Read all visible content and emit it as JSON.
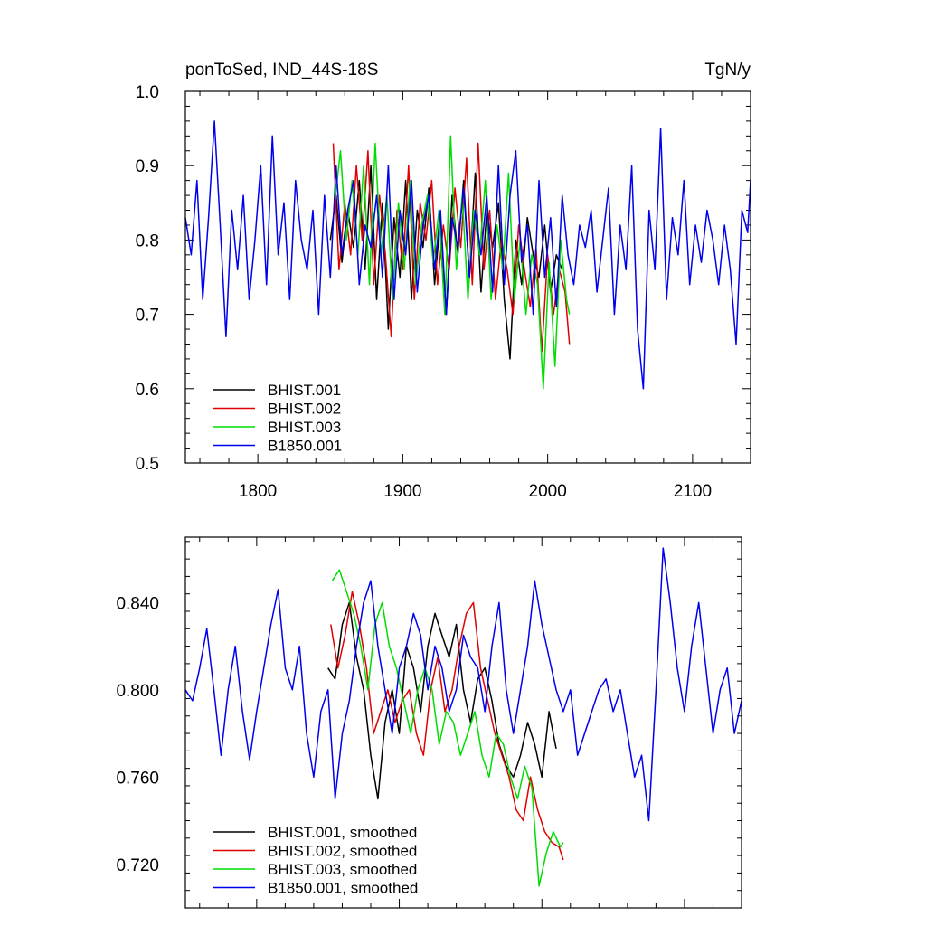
{
  "colors": {
    "black": "#000000",
    "red": "#e00000",
    "green": "#00dd00",
    "blue": "#0000ee"
  },
  "chart_data": [
    {
      "type": "line",
      "title": "ponToSed, IND_44S-18S",
      "units": "TgN/y",
      "xlim": [
        1750,
        2140
      ],
      "ylim": [
        0.5,
        1.0
      ],
      "xticks": [
        1800,
        1900,
        2000,
        2100
      ],
      "yticks": [
        0.5,
        0.6,
        0.7,
        0.8,
        0.9,
        1.0
      ],
      "ytick_labels": [
        "0.5",
        "0.6",
        "0.7",
        "0.8",
        "0.9",
        "1.0"
      ],
      "legend_position": "bottom-left",
      "series": [
        {
          "name": "BHIST.001",
          "color": "#000000",
          "x": [
            1850,
            1854,
            1858,
            1862,
            1866,
            1870,
            1874,
            1878,
            1882,
            1886,
            1890,
            1894,
            1898,
            1902,
            1906,
            1910,
            1914,
            1918,
            1922,
            1926,
            1930,
            1934,
            1938,
            1942,
            1946,
            1950,
            1954,
            1958,
            1962,
            1966,
            1970,
            1974,
            1978,
            1982,
            1986,
            1990,
            1994,
            1998,
            2002,
            2006,
            2010
          ],
          "values": [
            0.8,
            0.86,
            0.77,
            0.84,
            0.79,
            0.88,
            0.76,
            0.9,
            0.72,
            0.85,
            0.68,
            0.83,
            0.75,
            0.88,
            0.72,
            0.84,
            0.79,
            0.87,
            0.74,
            0.83,
            0.7,
            0.86,
            0.78,
            0.88,
            0.75,
            0.89,
            0.73,
            0.84,
            0.79,
            0.85,
            0.72,
            0.64,
            0.8,
            0.74,
            0.83,
            0.78,
            0.75,
            0.82,
            0.73,
            0.78,
            0.76
          ]
        },
        {
          "name": "BHIST.002",
          "color": "#e00000",
          "x": [
            1852,
            1856,
            1860,
            1864,
            1868,
            1872,
            1876,
            1880,
            1884,
            1888,
            1892,
            1896,
            1900,
            1904,
            1908,
            1912,
            1916,
            1920,
            1924,
            1928,
            1932,
            1936,
            1940,
            1944,
            1948,
            1952,
            1956,
            1960,
            1964,
            1968,
            1972,
            1976,
            1980,
            1984,
            1988,
            1992,
            1996,
            2000,
            2004,
            2008,
            2012,
            2015
          ],
          "values": [
            0.93,
            0.76,
            0.85,
            0.78,
            0.9,
            0.8,
            0.92,
            0.74,
            0.86,
            0.78,
            0.67,
            0.84,
            0.76,
            0.9,
            0.72,
            0.85,
            0.8,
            0.88,
            0.74,
            0.82,
            0.76,
            0.87,
            0.79,
            0.91,
            0.74,
            0.93,
            0.76,
            0.84,
            0.72,
            0.8,
            0.76,
            0.7,
            0.82,
            0.76,
            0.71,
            0.79,
            0.65,
            0.78,
            0.7,
            0.76,
            0.73,
            0.66
          ]
        },
        {
          "name": "BHIST.003",
          "color": "#00dd00",
          "x": [
            1853,
            1857,
            1861,
            1865,
            1869,
            1873,
            1877,
            1881,
            1885,
            1889,
            1893,
            1897,
            1901,
            1905,
            1909,
            1913,
            1917,
            1921,
            1925,
            1929,
            1933,
            1937,
            1941,
            1945,
            1949,
            1953,
            1957,
            1961,
            1965,
            1969,
            1973,
            1977,
            1981,
            1985,
            1989,
            1993,
            1997,
            2001,
            2005,
            2009,
            2013,
            2015
          ],
          "values": [
            0.85,
            0.92,
            0.8,
            0.88,
            0.78,
            0.9,
            0.74,
            0.93,
            0.78,
            0.86,
            0.72,
            0.85,
            0.76,
            0.88,
            0.74,
            0.82,
            0.86,
            0.77,
            0.84,
            0.7,
            0.94,
            0.76,
            0.86,
            0.72,
            0.84,
            0.78,
            0.88,
            0.72,
            0.82,
            0.76,
            0.89,
            0.72,
            0.8,
            0.7,
            0.78,
            0.74,
            0.6,
            0.77,
            0.63,
            0.8,
            0.72,
            0.7
          ]
        },
        {
          "name": "B1850.001",
          "color": "#0000ee",
          "x": [
            1750,
            1754,
            1758,
            1762,
            1766,
            1770,
            1774,
            1778,
            1782,
            1786,
            1790,
            1794,
            1798,
            1802,
            1806,
            1810,
            1814,
            1818,
            1822,
            1826,
            1830,
            1834,
            1838,
            1842,
            1846,
            1850,
            1854,
            1858,
            1862,
            1866,
            1870,
            1874,
            1878,
            1882,
            1886,
            1890,
            1894,
            1898,
            1902,
            1906,
            1910,
            1914,
            1918,
            1922,
            1926,
            1930,
            1934,
            1938,
            1942,
            1946,
            1950,
            1954,
            1958,
            1962,
            1966,
            1970,
            1974,
            1978,
            1982,
            1986,
            1990,
            1994,
            1998,
            2002,
            2006,
            2010,
            2014,
            2018,
            2022,
            2026,
            2030,
            2034,
            2038,
            2042,
            2046,
            2050,
            2054,
            2058,
            2062,
            2066,
            2070,
            2074,
            2078,
            2082,
            2086,
            2090,
            2094,
            2098,
            2102,
            2106,
            2110,
            2114,
            2118,
            2122,
            2126,
            2130,
            2134,
            2138,
            2140
          ],
          "values": [
            0.83,
            0.78,
            0.88,
            0.72,
            0.83,
            0.96,
            0.82,
            0.67,
            0.84,
            0.76,
            0.86,
            0.72,
            0.8,
            0.9,
            0.74,
            0.94,
            0.78,
            0.85,
            0.72,
            0.88,
            0.8,
            0.76,
            0.84,
            0.7,
            0.86,
            0.75,
            0.9,
            0.78,
            0.84,
            0.88,
            0.74,
            0.82,
            0.79,
            0.86,
            0.75,
            0.9,
            0.72,
            0.84,
            0.78,
            0.88,
            0.73,
            0.82,
            0.86,
            0.76,
            0.84,
            0.7,
            0.83,
            0.79,
            0.87,
            0.75,
            0.84,
            0.78,
            0.86,
            0.73,
            0.9,
            0.74,
            0.86,
            0.92,
            0.77,
            0.82,
            0.7,
            0.88,
            0.75,
            0.83,
            0.71,
            0.86,
            0.78,
            0.74,
            0.82,
            0.79,
            0.84,
            0.73,
            0.8,
            0.87,
            0.7,
            0.82,
            0.76,
            0.9,
            0.68,
            0.6,
            0.84,
            0.76,
            0.95,
            0.72,
            0.83,
            0.78,
            0.88,
            0.74,
            0.82,
            0.77,
            0.84,
            0.8,
            0.74,
            0.82,
            0.76,
            0.66,
            0.84,
            0.81,
            0.88
          ]
        }
      ]
    },
    {
      "type": "line",
      "xlim": [
        1750,
        2140
      ],
      "ylim": [
        0.7,
        0.87
      ],
      "xticks": [
        1800,
        1900,
        2000,
        2100
      ],
      "yticks": [
        0.72,
        0.76,
        0.8,
        0.84
      ],
      "ytick_labels": [
        "0.720",
        "0.760",
        "0.800",
        "0.840"
      ],
      "legend_position": "bottom-left",
      "series": [
        {
          "name": "BHIST.001, smoothed",
          "color": "#000000",
          "x": [
            1850,
            1855,
            1860,
            1865,
            1870,
            1875,
            1880,
            1885,
            1890,
            1895,
            1900,
            1905,
            1910,
            1915,
            1920,
            1925,
            1930,
            1935,
            1940,
            1945,
            1950,
            1955,
            1960,
            1965,
            1970,
            1975,
            1980,
            1985,
            1990,
            1995,
            2000,
            2005,
            2010
          ],
          "values": [
            0.81,
            0.805,
            0.83,
            0.84,
            0.815,
            0.8,
            0.77,
            0.75,
            0.785,
            0.8,
            0.78,
            0.82,
            0.81,
            0.79,
            0.82,
            0.835,
            0.825,
            0.815,
            0.83,
            0.8,
            0.785,
            0.805,
            0.81,
            0.795,
            0.775,
            0.765,
            0.76,
            0.77,
            0.785,
            0.775,
            0.76,
            0.79,
            0.773
          ]
        },
        {
          "name": "BHIST.002, smoothed",
          "color": "#e00000",
          "x": [
            1852,
            1857,
            1862,
            1867,
            1872,
            1877,
            1882,
            1887,
            1892,
            1897,
            1902,
            1907,
            1912,
            1917,
            1922,
            1927,
            1932,
            1937,
            1942,
            1947,
            1952,
            1957,
            1962,
            1967,
            1972,
            1977,
            1982,
            1987,
            1992,
            1997,
            2002,
            2007,
            2012,
            2015
          ],
          "values": [
            0.83,
            0.81,
            0.825,
            0.845,
            0.83,
            0.81,
            0.78,
            0.79,
            0.8,
            0.785,
            0.795,
            0.8,
            0.78,
            0.77,
            0.8,
            0.815,
            0.79,
            0.8,
            0.82,
            0.835,
            0.84,
            0.81,
            0.795,
            0.78,
            0.77,
            0.76,
            0.745,
            0.74,
            0.76,
            0.745,
            0.735,
            0.73,
            0.728,
            0.722
          ]
        },
        {
          "name": "BHIST.003, smoothed",
          "color": "#00dd00",
          "x": [
            1853,
            1858,
            1863,
            1868,
            1873,
            1878,
            1883,
            1888,
            1893,
            1898,
            1903,
            1908,
            1913,
            1918,
            1923,
            1928,
            1933,
            1938,
            1943,
            1948,
            1953,
            1958,
            1963,
            1968,
            1973,
            1978,
            1983,
            1988,
            1993,
            1998,
            2003,
            2008,
            2013,
            2015
          ],
          "values": [
            0.85,
            0.855,
            0.845,
            0.835,
            0.82,
            0.8,
            0.83,
            0.84,
            0.82,
            0.81,
            0.795,
            0.78,
            0.8,
            0.81,
            0.8,
            0.775,
            0.79,
            0.785,
            0.77,
            0.78,
            0.79,
            0.77,
            0.76,
            0.78,
            0.775,
            0.76,
            0.75,
            0.765,
            0.755,
            0.71,
            0.725,
            0.735,
            0.728,
            0.73
          ]
        },
        {
          "name": "B1850.001, smoothed",
          "color": "#0000ee",
          "x": [
            1750,
            1755,
            1760,
            1765,
            1770,
            1775,
            1780,
            1785,
            1790,
            1795,
            1800,
            1805,
            1810,
            1815,
            1820,
            1825,
            1830,
            1835,
            1840,
            1845,
            1850,
            1855,
            1860,
            1865,
            1870,
            1875,
            1880,
            1885,
            1890,
            1895,
            1900,
            1905,
            1910,
            1915,
            1920,
            1925,
            1930,
            1935,
            1940,
            1945,
            1950,
            1955,
            1960,
            1965,
            1970,
            1975,
            1980,
            1985,
            1990,
            1995,
            2000,
            2005,
            2010,
            2015,
            2020,
            2025,
            2030,
            2035,
            2040,
            2045,
            2050,
            2055,
            2060,
            2065,
            2070,
            2075,
            2080,
            2085,
            2090,
            2095,
            2100,
            2105,
            2110,
            2115,
            2120,
            2125,
            2130,
            2135,
            2140
          ],
          "values": [
            0.8,
            0.795,
            0.81,
            0.828,
            0.8,
            0.77,
            0.8,
            0.82,
            0.79,
            0.768,
            0.79,
            0.81,
            0.83,
            0.846,
            0.81,
            0.8,
            0.82,
            0.78,
            0.76,
            0.79,
            0.8,
            0.75,
            0.78,
            0.795,
            0.82,
            0.84,
            0.85,
            0.82,
            0.8,
            0.78,
            0.81,
            0.82,
            0.835,
            0.825,
            0.8,
            0.82,
            0.81,
            0.79,
            0.8,
            0.825,
            0.815,
            0.81,
            0.79,
            0.82,
            0.84,
            0.8,
            0.78,
            0.8,
            0.82,
            0.85,
            0.83,
            0.815,
            0.8,
            0.79,
            0.8,
            0.77,
            0.78,
            0.79,
            0.8,
            0.805,
            0.79,
            0.8,
            0.78,
            0.76,
            0.77,
            0.74,
            0.8,
            0.865,
            0.84,
            0.81,
            0.79,
            0.82,
            0.84,
            0.81,
            0.78,
            0.8,
            0.81,
            0.78,
            0.795
          ]
        }
      ]
    }
  ]
}
